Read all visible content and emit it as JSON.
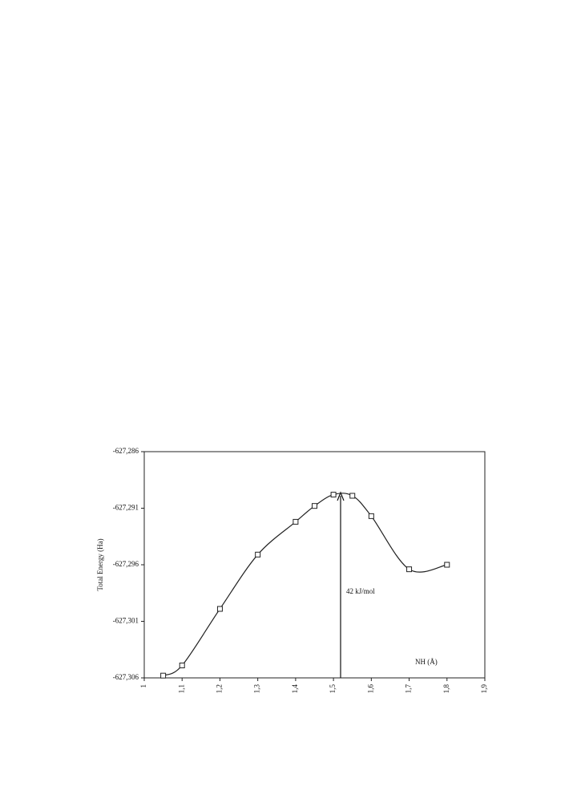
{
  "chart_data": {
    "type": "line",
    "x_label": "NH (Å)",
    "y_label": "Total Energy (Ha)",
    "annotation": "42 kJ/mol",
    "x": [
      1.05,
      1.1,
      1.2,
      1.3,
      1.4,
      1.45,
      1.5,
      1.55,
      1.6,
      1.7,
      1.8
    ],
    "series": [
      {
        "color": "#222222",
        "marker": "square",
        "values": [
          -627.3058,
          -627.3049,
          -627.2999,
          -627.2951,
          -627.2922,
          -627.2908,
          -627.2898,
          -627.2899,
          -627.2917,
          -627.2964,
          -627.296
        ]
      }
    ],
    "xlim": [
      1,
      1.9
    ],
    "xticks": [
      1,
      {
        "value": 1.1,
        "label": "1,1"
      },
      {
        "value": 1.2,
        "label": "1,2"
      },
      {
        "value": 1.3,
        "label": "1,3"
      },
      {
        "value": 1.4,
        "label": "1,4"
      },
      {
        "value": 1.5,
        "label": "1,5"
      },
      {
        "value": 1.6,
        "label": "1,6"
      },
      {
        "value": 1.7,
        "label": "1,7"
      },
      {
        "value": 1.8,
        "label": "1,8"
      },
      {
        "value": 1.9,
        "label": "1,9"
      }
    ],
    "ylim": [
      -627.306,
      -627.286
    ],
    "yticks": [
      {
        "value": -627.306,
        "label": "-627,306"
      },
      {
        "value": -627.301,
        "label": "-627,301"
      },
      {
        "value": -627.296,
        "label": "-627,296"
      },
      {
        "value": -627.291,
        "label": "-627,291"
      },
      {
        "value": -627.286,
        "label": "-627,286"
      }
    ],
    "grid": false
  }
}
